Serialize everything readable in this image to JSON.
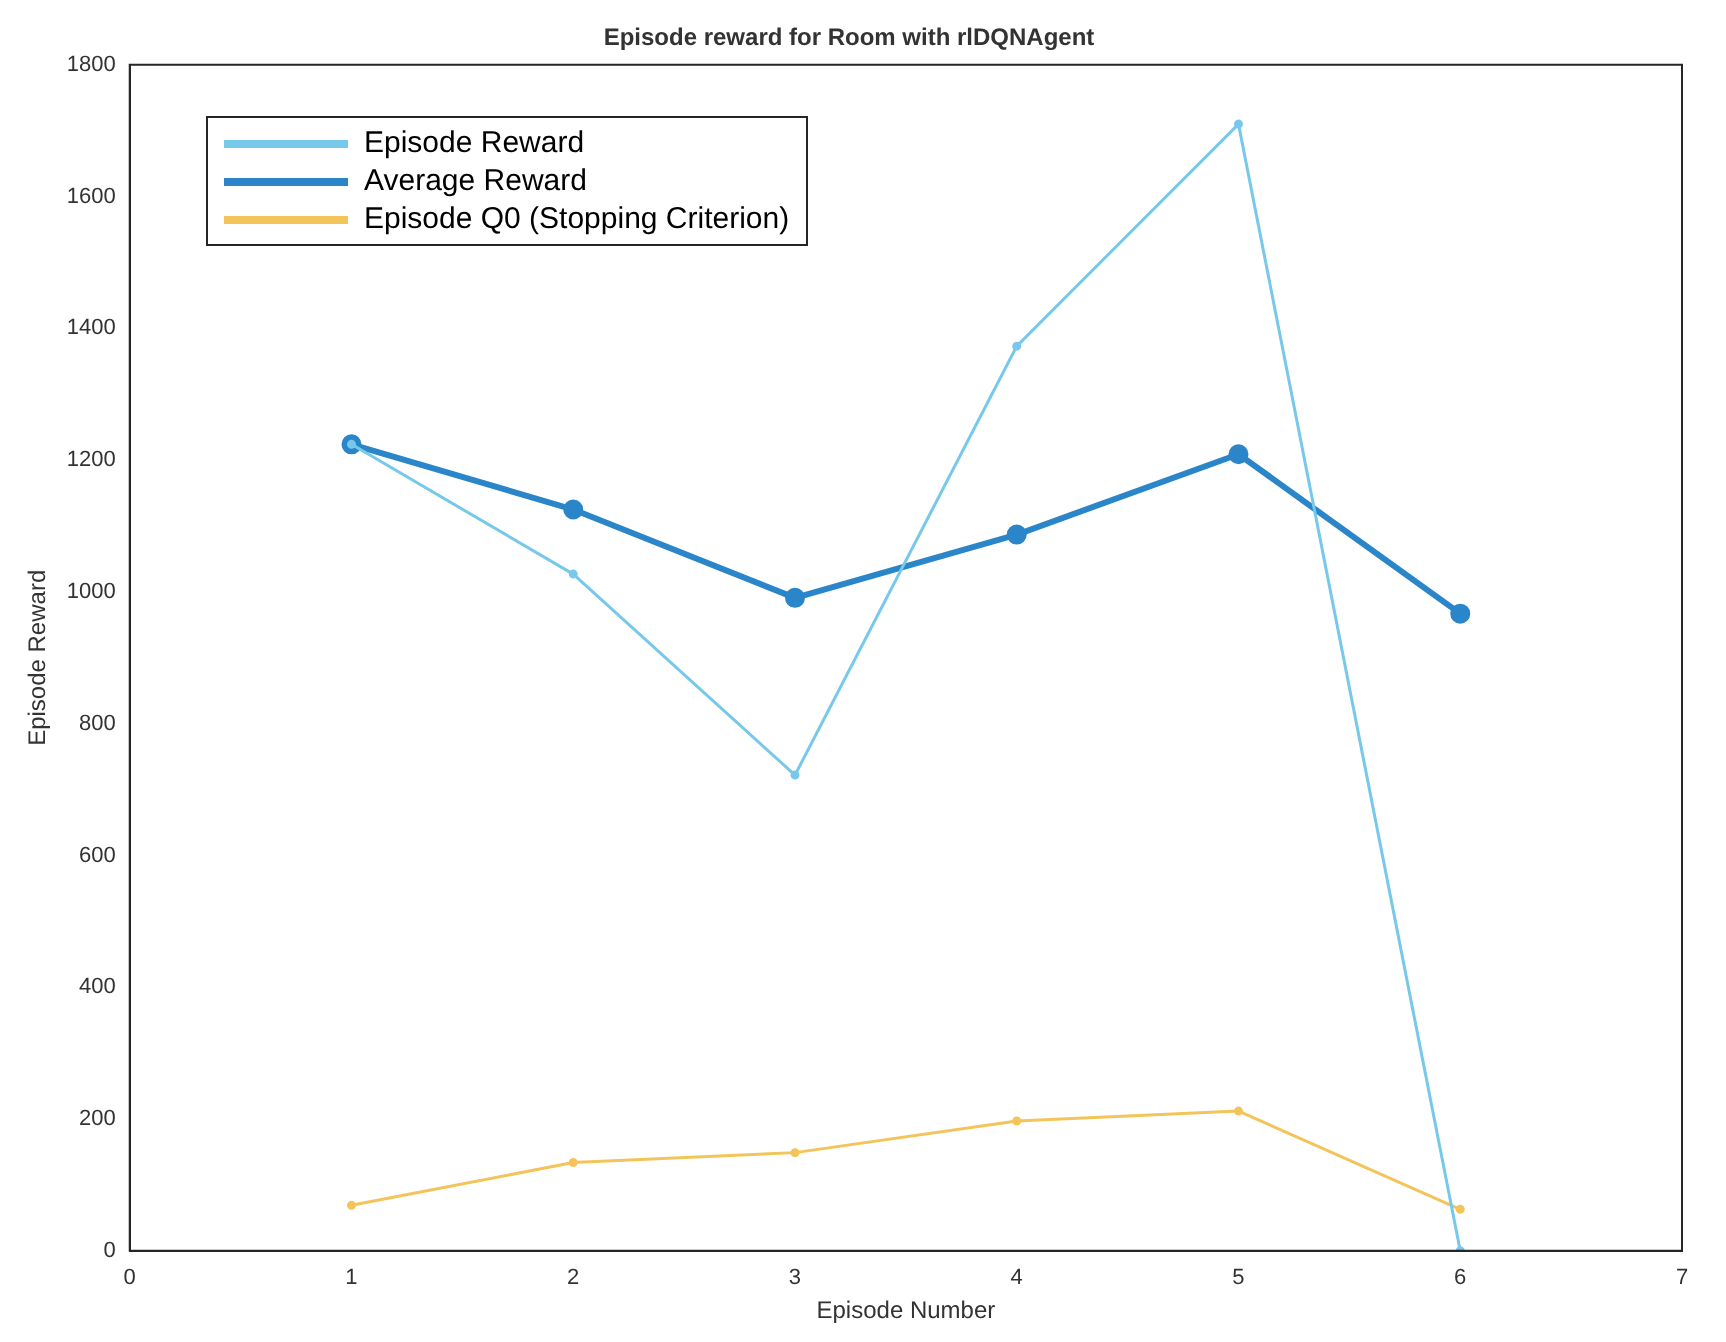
{
  "chart_data": {
    "type": "line",
    "title": "Episode reward for Room with rlDQNAgent",
    "xlabel": "Episode Number",
    "ylabel": "Episode Reward",
    "x": [
      1,
      2,
      3,
      4,
      5,
      6
    ],
    "series": [
      {
        "name": "Episode Reward",
        "color": "#77c8ea",
        "values": [
          1224,
          1027,
          722,
          1373,
          1710,
          0
        ]
      },
      {
        "name": "Average Reward",
        "color": "#2a86c8",
        "values": [
          1224,
          1125,
          991,
          1087,
          1209,
          967
        ]
      },
      {
        "name": "Episode Q0 (Stopping Criterion)",
        "color": "#f2c45a",
        "values": [
          69,
          134,
          149,
          197,
          212,
          63
        ]
      }
    ],
    "xlim": [
      0,
      7
    ],
    "xticks": [
      0,
      1,
      2,
      3,
      4,
      5,
      6,
      7
    ],
    "ylim": [
      0,
      1800
    ],
    "yticks": [
      0,
      200,
      400,
      600,
      800,
      1000,
      1200,
      1400,
      1600,
      1800
    ],
    "grid": false,
    "legend": "top left",
    "marker": "circle",
    "line_style": "solid"
  }
}
